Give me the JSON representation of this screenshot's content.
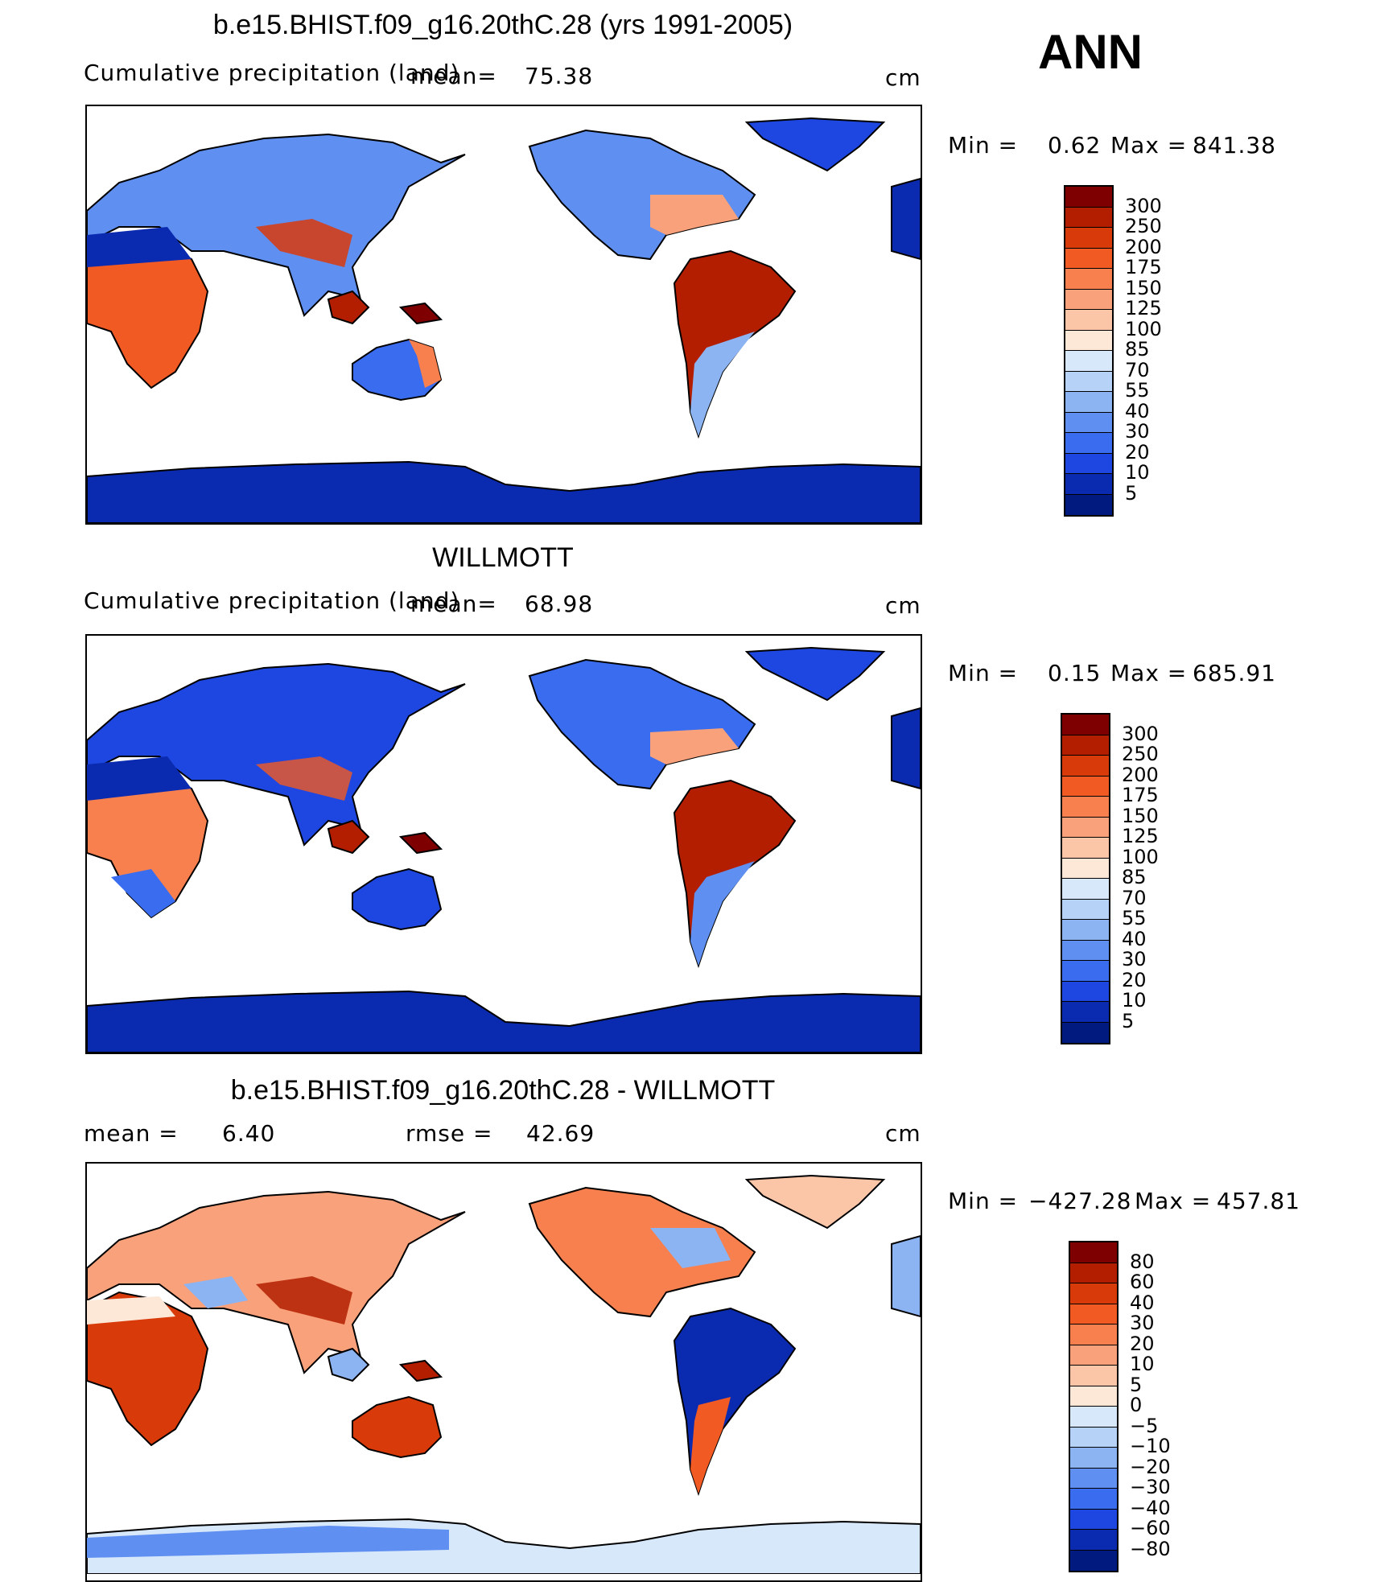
{
  "season": "ANN",
  "panels": [
    {
      "title": "b.e15.BHIST.f09_g16.20thC.28 (yrs 1991-2005)",
      "left_label": "Cumulative precipitation  (land)",
      "mean_label": "mean=",
      "mean_value": "75.38",
      "rmse_label": "",
      "rmse_value": "",
      "units": "cm",
      "min_label": "Min  =",
      "min_value": "0.62",
      "max_label": "Max  =",
      "max_value": "841.38",
      "colorbar_labels": [
        "300",
        "250",
        "200",
        "175",
        "150",
        "125",
        "100",
        "85",
        "70",
        "55",
        "40",
        "30",
        "20",
        "10",
        "5"
      ],
      "colors": [
        "#7f0000",
        "#b31e00",
        "#d93a0a",
        "#f25a23",
        "#f7804e",
        "#f9a17a",
        "#fbc6a8",
        "#fde8d8",
        "#d7e8fb",
        "#b7d2f7",
        "#8db4f2",
        "#5f8ff0",
        "#3a6cf0",
        "#1d47e0",
        "#0a2bb0",
        "#001a80"
      ]
    },
    {
      "title": "WILLMOTT",
      "left_label": "Cumulative precipitation  (land)",
      "mean_label": "mean=",
      "mean_value": "68.98",
      "rmse_label": "",
      "rmse_value": "",
      "units": "cm",
      "min_label": "Min  =",
      "min_value": "0.15",
      "max_label": "Max  =",
      "max_value": "685.91",
      "colorbar_labels": [
        "300",
        "250",
        "200",
        "175",
        "150",
        "125",
        "100",
        "85",
        "70",
        "55",
        "40",
        "30",
        "20",
        "10",
        "5"
      ],
      "colors": [
        "#7f0000",
        "#b31e00",
        "#d93a0a",
        "#f25a23",
        "#f7804e",
        "#f9a17a",
        "#fbc6a8",
        "#fde8d8",
        "#d7e8fb",
        "#b7d2f7",
        "#8db4f2",
        "#5f8ff0",
        "#3a6cf0",
        "#1d47e0",
        "#0a2bb0",
        "#001a80"
      ]
    },
    {
      "title": "b.e15.BHIST.f09_g16.20thC.28 - WILLMOTT",
      "left_label": "mean  =",
      "mean_label": "",
      "mean_value": "6.40",
      "rmse_label": "rmse  =",
      "rmse_value": "42.69",
      "units": "cm",
      "min_label": "Min  =",
      "min_value": "−427.28",
      "max_label": "Max  =",
      "max_value": "457.81",
      "colorbar_labels": [
        "80",
        "60",
        "40",
        "30",
        "20",
        "10",
        "5",
        "0",
        "−5",
        "−10",
        "−20",
        "−30",
        "−40",
        "−60",
        "−80"
      ],
      "colors": [
        "#7f0000",
        "#b31e00",
        "#d93a0a",
        "#f25a23",
        "#f7804e",
        "#f9a17a",
        "#fbc6a8",
        "#fde8d8",
        "#d7e8fb",
        "#b7d2f7",
        "#8db4f2",
        "#5f8ff0",
        "#3a6cf0",
        "#1d47e0",
        "#0a2bb0",
        "#001a80"
      ]
    }
  ]
}
